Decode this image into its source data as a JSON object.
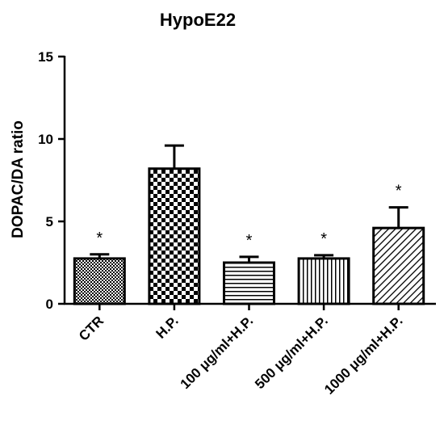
{
  "chart_data": {
    "type": "bar",
    "title": "HypoE22",
    "y_label": "DOPAC/DA ratio",
    "categories": [
      "CTR",
      "H.P.",
      "100 μg/ml+H.P.",
      "500 μg/ml+H.P.",
      "1000 μg/ml+H.P."
    ],
    "values": [
      2.75,
      8.2,
      2.5,
      2.75,
      4.6
    ],
    "errors": [
      0.25,
      1.4,
      0.35,
      0.2,
      1.25
    ],
    "annotations": [
      "*",
      null,
      "*",
      "*",
      "*"
    ],
    "color": "#000000",
    "ylim": [
      0,
      15
    ],
    "yticks": [
      0,
      5,
      10,
      15
    ],
    "grid": false
  }
}
